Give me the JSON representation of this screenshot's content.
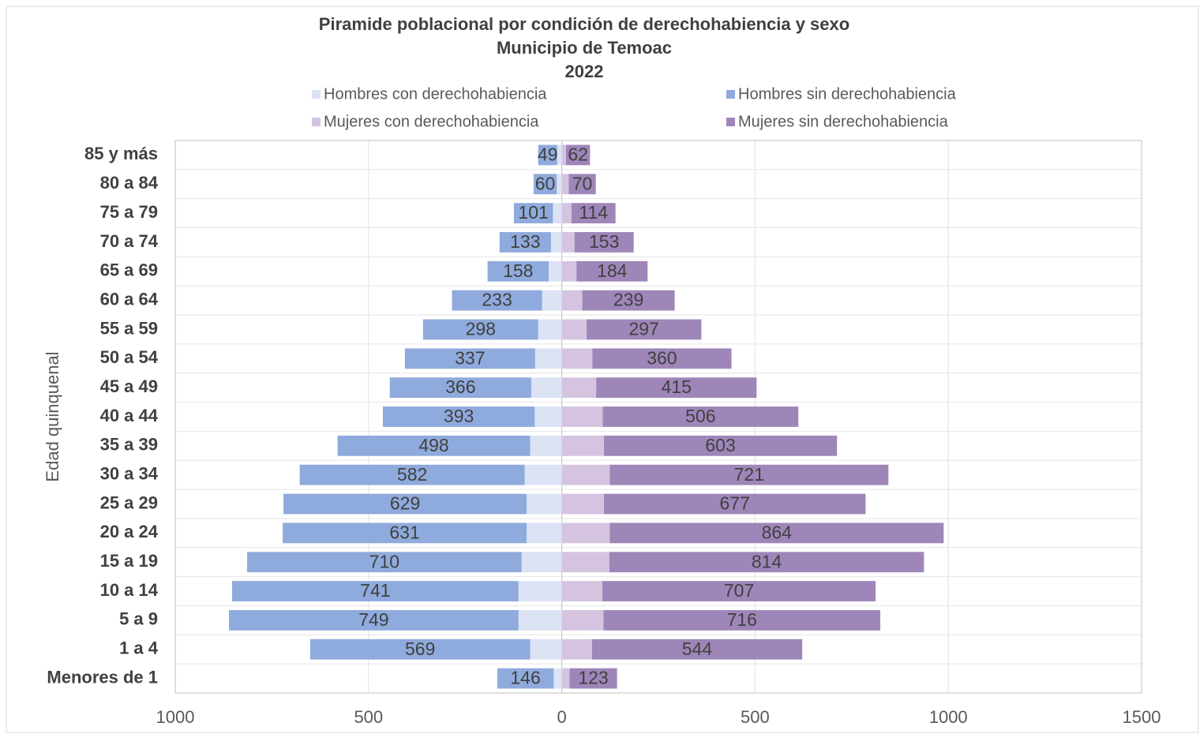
{
  "chart_data": {
    "type": "pyramid",
    "title": [
      "Piramide poblacional por condición de derechohabiencia  y sexo",
      "Municipio de Temoac",
      "2022"
    ],
    "y_label": "Edad quinquenal",
    "categories": [
      "85 y más",
      "80 a 84",
      "75 a 79",
      "70 a 74",
      "65 a 69",
      "60 a 64",
      "55 a 59",
      "50 a 54",
      "45 a 49",
      "40 a 44",
      "35 a 39",
      "30 a 34",
      "25 a 29",
      "20 a 24",
      "15 a 19",
      "10 a 14",
      "5 a 9",
      "1 a 4",
      "Menores de 1"
    ],
    "series": [
      {
        "name": "Hombres con derechohabiencia",
        "color": "#dce3f5",
        "side": "left",
        "values": [
          12,
          13,
          23,
          28,
          34,
          51,
          61,
          69,
          79,
          70,
          82,
          96,
          91,
          91,
          104,
          112,
          112,
          82,
          21
        ]
      },
      {
        "name": "Hombres sin derechohabiencia",
        "color": "#8faadc",
        "side": "left",
        "values": [
          49,
          60,
          101,
          133,
          158,
          233,
          298,
          337,
          366,
          393,
          498,
          582,
          629,
          631,
          710,
          741,
          749,
          569,
          146
        ]
      },
      {
        "name": "Mujeres con derechohabiencia",
        "color": "#d5c4e0",
        "side": "right",
        "values": [
          11,
          18,
          25,
          33,
          38,
          53,
          64,
          79,
          89,
          106,
          109,
          124,
          109,
          124,
          123,
          105,
          108,
          78,
          20
        ]
      },
      {
        "name": "Mujeres sin derechohabiencia",
        "color": "#9e86b9",
        "side": "right",
        "values": [
          62,
          70,
          114,
          153,
          184,
          239,
          297,
          360,
          415,
          506,
          603,
          721,
          677,
          864,
          814,
          707,
          716,
          544,
          123
        ]
      }
    ],
    "data_labels": [
      1,
      3
    ],
    "xlim": [
      -1000,
      1500
    ],
    "xticks": [
      {
        "value": -1000,
        "label": "1000"
      },
      {
        "value": -500,
        "label": "500"
      },
      0,
      500,
      1000,
      1500
    ],
    "grid": true
  }
}
